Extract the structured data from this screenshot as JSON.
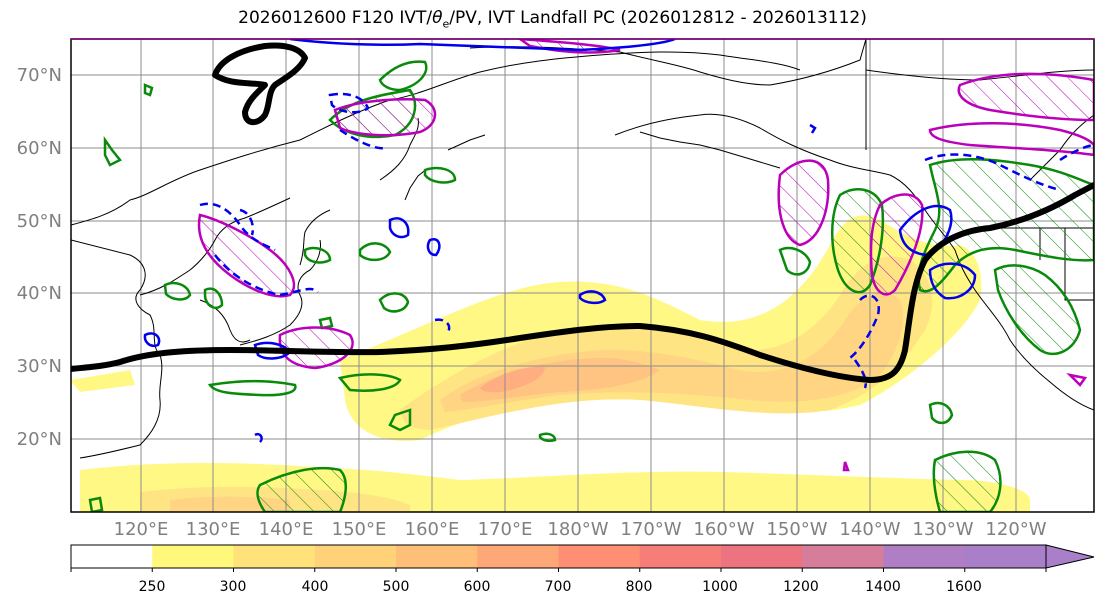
{
  "title_parts": {
    "prefix": "2026012600 F120 IVT/",
    "theta": "θ",
    "theta_sub": "e",
    "suffix": "/PV, IVT Landfall PC (2026012812 - 2026013112)"
  },
  "map": {
    "lat_labels": [
      "70°N",
      "60°N",
      "50°N",
      "40°N",
      "30°N",
      "20°N"
    ],
    "lon_labels": [
      "120°E",
      "130°E",
      "140°E",
      "150°E",
      "160°E",
      "170°E",
      "180°W",
      "170°W",
      "160°W",
      "150°W",
      "140°W",
      "130°W",
      "120°W"
    ]
  },
  "colorbar": {
    "levels": [
      "250",
      "300",
      "400",
      "500",
      "600",
      "700",
      "800",
      "1000",
      "1200",
      "1400",
      "1600"
    ],
    "colors": [
      "#ffffff",
      "#fff87a",
      "#ffe27a",
      "#ffd27a",
      "#ffbf78",
      "#ffa877",
      "#ff8f74",
      "#f77e78",
      "#ec7480",
      "#d77d9c",
      "#b07ec4",
      "#a87fc8"
    ]
  },
  "colors": {
    "ivt_pc": "#000000",
    "theta_e": "#0a8a0a",
    "pv_pos": "#bb00bb",
    "pv_neg": "#0000ee",
    "coast": "#000000",
    "grid": "#8c8c8c"
  }
}
